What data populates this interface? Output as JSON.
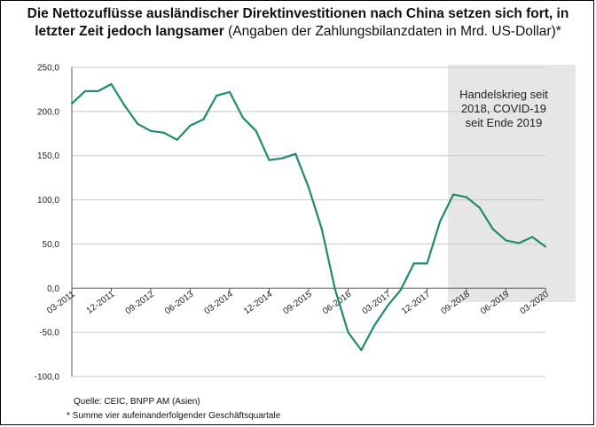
{
  "header": {
    "title_bold": "Die Nettozuflüsse ausländischer Direktinvestitionen nach China setzen sich fort, in letzter Zeit jedoch langsamer",
    "title_normal": " (Angaben der Zahlungsbilanzdaten in Mrd. US-Dollar)*"
  },
  "footer": {
    "source": "Quelle:  CEIC,  BNPP  AM (Asien)",
    "footnote": "* Summe  vier aufeinanderfolgender Geschäftsquartale"
  },
  "chart_data": {
    "type": "line",
    "title": "Die Nettozuflüsse ausländischer Direktinvestitionen nach China setzen sich fort, in letzter Zeit jedoch langsamer (Angaben der Zahlungsbilanzdaten in Mrd. US-Dollar)*",
    "xlabel": "",
    "ylabel": "",
    "ylim": [
      -100,
      250
    ],
    "y_ticks": [
      "250,0",
      "200,0",
      "150,0",
      "100,0",
      "50,0",
      "0,0",
      "-50,0",
      "-100,0"
    ],
    "y_tick_values": [
      250,
      200,
      150,
      100,
      50,
      0,
      -50,
      -100
    ],
    "x_tick_labels": [
      "03-2011",
      "12-2011",
      "09-2012",
      "06-2013",
      "03-2014",
      "12-2014",
      "09-2015",
      "06-2016",
      "03-2017",
      "12-2017",
      "09-2018",
      "06-2019",
      "03-2020"
    ],
    "x_tick_indices": [
      0,
      3,
      6,
      9,
      12,
      15,
      18,
      21,
      24,
      27,
      30,
      33,
      36
    ],
    "grid": true,
    "line_color": "#1e8c6e",
    "series": [
      {
        "values": [
          209,
          223,
          223,
          231,
          207,
          186,
          178,
          176,
          168,
          184,
          191,
          218,
          222,
          193,
          178,
          145,
          147,
          152,
          114,
          67,
          -1,
          -50,
          -70,
          -42,
          -20,
          -2,
          28,
          28,
          76,
          106,
          103,
          91,
          67,
          54,
          51,
          58,
          47
        ]
      }
    ],
    "shaded_region": {
      "start_index": 29,
      "end_index": 36,
      "color": "#e6e6e6",
      "label_lines": [
        "Handelskrieg seit",
        "2018, COVID-19",
        "seit Ende 2019"
      ]
    }
  }
}
